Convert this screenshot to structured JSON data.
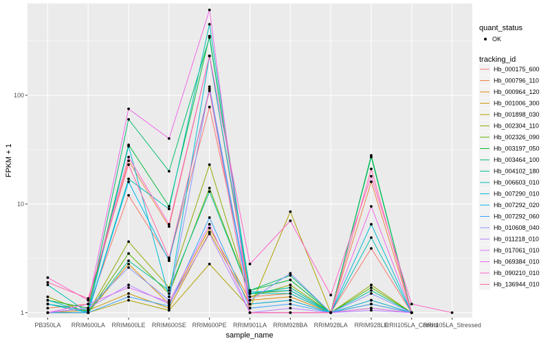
{
  "chart_data": {
    "type": "line",
    "xlabel": "sample_name",
    "ylabel": "FPKM + 1",
    "y_scale": "log10",
    "ylim": [
      0.9,
      700
    ],
    "y_ticks": [
      1,
      10,
      100
    ],
    "grid": true,
    "legend_position": "right",
    "categories": [
      "PB350LA",
      "RRIM600LA",
      "RRIM600LE",
      "RRIM600SE",
      "RRIM600PE",
      "RRIM901LA",
      "RRIM928BA",
      "RRIM928LA",
      "RRIM928LE",
      "RRII105LA_Control",
      "RRII105LA_Stressed"
    ],
    "point_legend": {
      "title": "quant_status",
      "items": [
        "OK"
      ]
    },
    "series_legend_title": "tracking_id",
    "series": [
      {
        "name": "Hb_000175_600",
        "color": "#F8766D",
        "values": [
          1.0,
          1.1,
          12.0,
          3.1,
          78,
          1.5,
          1.6,
          1.0,
          3.9,
          1.0,
          null
        ]
      },
      {
        "name": "Hb_000796_110",
        "color": "#EE8044",
        "values": [
          1.1,
          1.2,
          25.0,
          6.2,
          230,
          1.4,
          1.5,
          1.0,
          16.0,
          1.0,
          null
        ]
      },
      {
        "name": "Hb_000964_120",
        "color": "#DE8C00",
        "values": [
          1.0,
          1.0,
          2.8,
          1.2,
          6.0,
          1.3,
          1.4,
          1.0,
          1.3,
          1.0,
          null
        ]
      },
      {
        "name": "Hb_001006_300",
        "color": "#C99800",
        "values": [
          1.0,
          1.05,
          1.5,
          1.1,
          5.5,
          1.2,
          1.3,
          1.0,
          1.2,
          1.0,
          null
        ]
      },
      {
        "name": "Hb_001898_030",
        "color": "#AEA200",
        "values": [
          1.0,
          1.0,
          1.3,
          1.05,
          2.8,
          1.1,
          8.5,
          1.0,
          1.1,
          1.0,
          null
        ]
      },
      {
        "name": "Hb_002304_110",
        "color": "#8CAB00",
        "values": [
          1.4,
          1.0,
          4.5,
          1.7,
          23,
          1.4,
          1.8,
          1.0,
          1.8,
          1.0,
          null
        ]
      },
      {
        "name": "Hb_002326_090",
        "color": "#5BB300",
        "values": [
          1.2,
          1.0,
          3.5,
          1.5,
          14,
          1.5,
          1.6,
          1.0,
          1.7,
          1.0,
          null
        ]
      },
      {
        "name": "Hb_003197_050",
        "color": "#00BA38",
        "values": [
          1.3,
          1.1,
          35.0,
          9.5,
          350,
          1.6,
          2.0,
          1.0,
          28,
          1.0,
          null
        ]
      },
      {
        "name": "Hb_003464_100",
        "color": "#00BE6C",
        "values": [
          1.2,
          1.05,
          60.0,
          20.0,
          340,
          1.6,
          2.2,
          1.0,
          27,
          1.0,
          null
        ]
      },
      {
        "name": "Hb_004102_180",
        "color": "#00C094",
        "values": [
          1.0,
          1.0,
          3.0,
          1.6,
          13,
          1.5,
          1.7,
          1.0,
          1.6,
          1.0,
          null
        ]
      },
      {
        "name": "Hb_006603_010",
        "color": "#00BFB8",
        "values": [
          1.8,
          1.0,
          17.0,
          9.0,
          450,
          1.5,
          1.5,
          1.0,
          4.9,
          1.0,
          null
        ]
      },
      {
        "name": "Hb_007290_010",
        "color": "#00BBD6",
        "values": [
          1.3,
          1.0,
          34.0,
          1.4,
          230,
          1.55,
          1.6,
          1.0,
          6.5,
          1.0,
          null
        ]
      },
      {
        "name": "Hb_007292_020",
        "color": "#00B4EF",
        "values": [
          1.2,
          1.0,
          16.0,
          3.0,
          115,
          1.2,
          1.3,
          1.0,
          1.3,
          1.0,
          null
        ]
      },
      {
        "name": "Hb_007292_060",
        "color": "#35A2FF",
        "values": [
          1.0,
          1.0,
          1.4,
          1.15,
          7.5,
          1.1,
          1.2,
          1.0,
          1.2,
          1.0,
          null
        ]
      },
      {
        "name": "Hb_010608_040",
        "color": "#8494FF",
        "values": [
          1.0,
          1.1,
          2.6,
          1.3,
          120,
          1.3,
          2.3,
          1.0,
          1.5,
          1.0,
          null
        ]
      },
      {
        "name": "Hb_011218_010",
        "color": "#B983FF",
        "values": [
          1.0,
          1.1,
          1.8,
          1.2,
          5.3,
          1.0,
          1.1,
          1.0,
          1.05,
          1.0,
          null
        ]
      },
      {
        "name": "Hb_017061_010",
        "color": "#DB72FB",
        "values": [
          1.0,
          1.2,
          1.7,
          1.25,
          6.5,
          1.0,
          1.0,
          1.0,
          1.1,
          1.0,
          null
        ]
      },
      {
        "name": "Hb_069384_010",
        "color": "#F166E8",
        "values": [
          1.0,
          1.2,
          75.0,
          40.0,
          610,
          1.0,
          1.0,
          1.0,
          9.5,
          1.0,
          null
        ]
      },
      {
        "name": "Hb_090210_010",
        "color": "#FF61C9",
        "values": [
          2.1,
          1.3,
          27.0,
          6.5,
          230,
          2.8,
          7.0,
          1.45,
          18,
          1.2,
          1.0
        ]
      },
      {
        "name": "Hb_136944_010",
        "color": "#FF67A4",
        "values": [
          1.9,
          1.35,
          23.0,
          3.2,
          110,
          1.0,
          1.0,
          1.0,
          21,
          1.0,
          null
        ]
      }
    ]
  }
}
